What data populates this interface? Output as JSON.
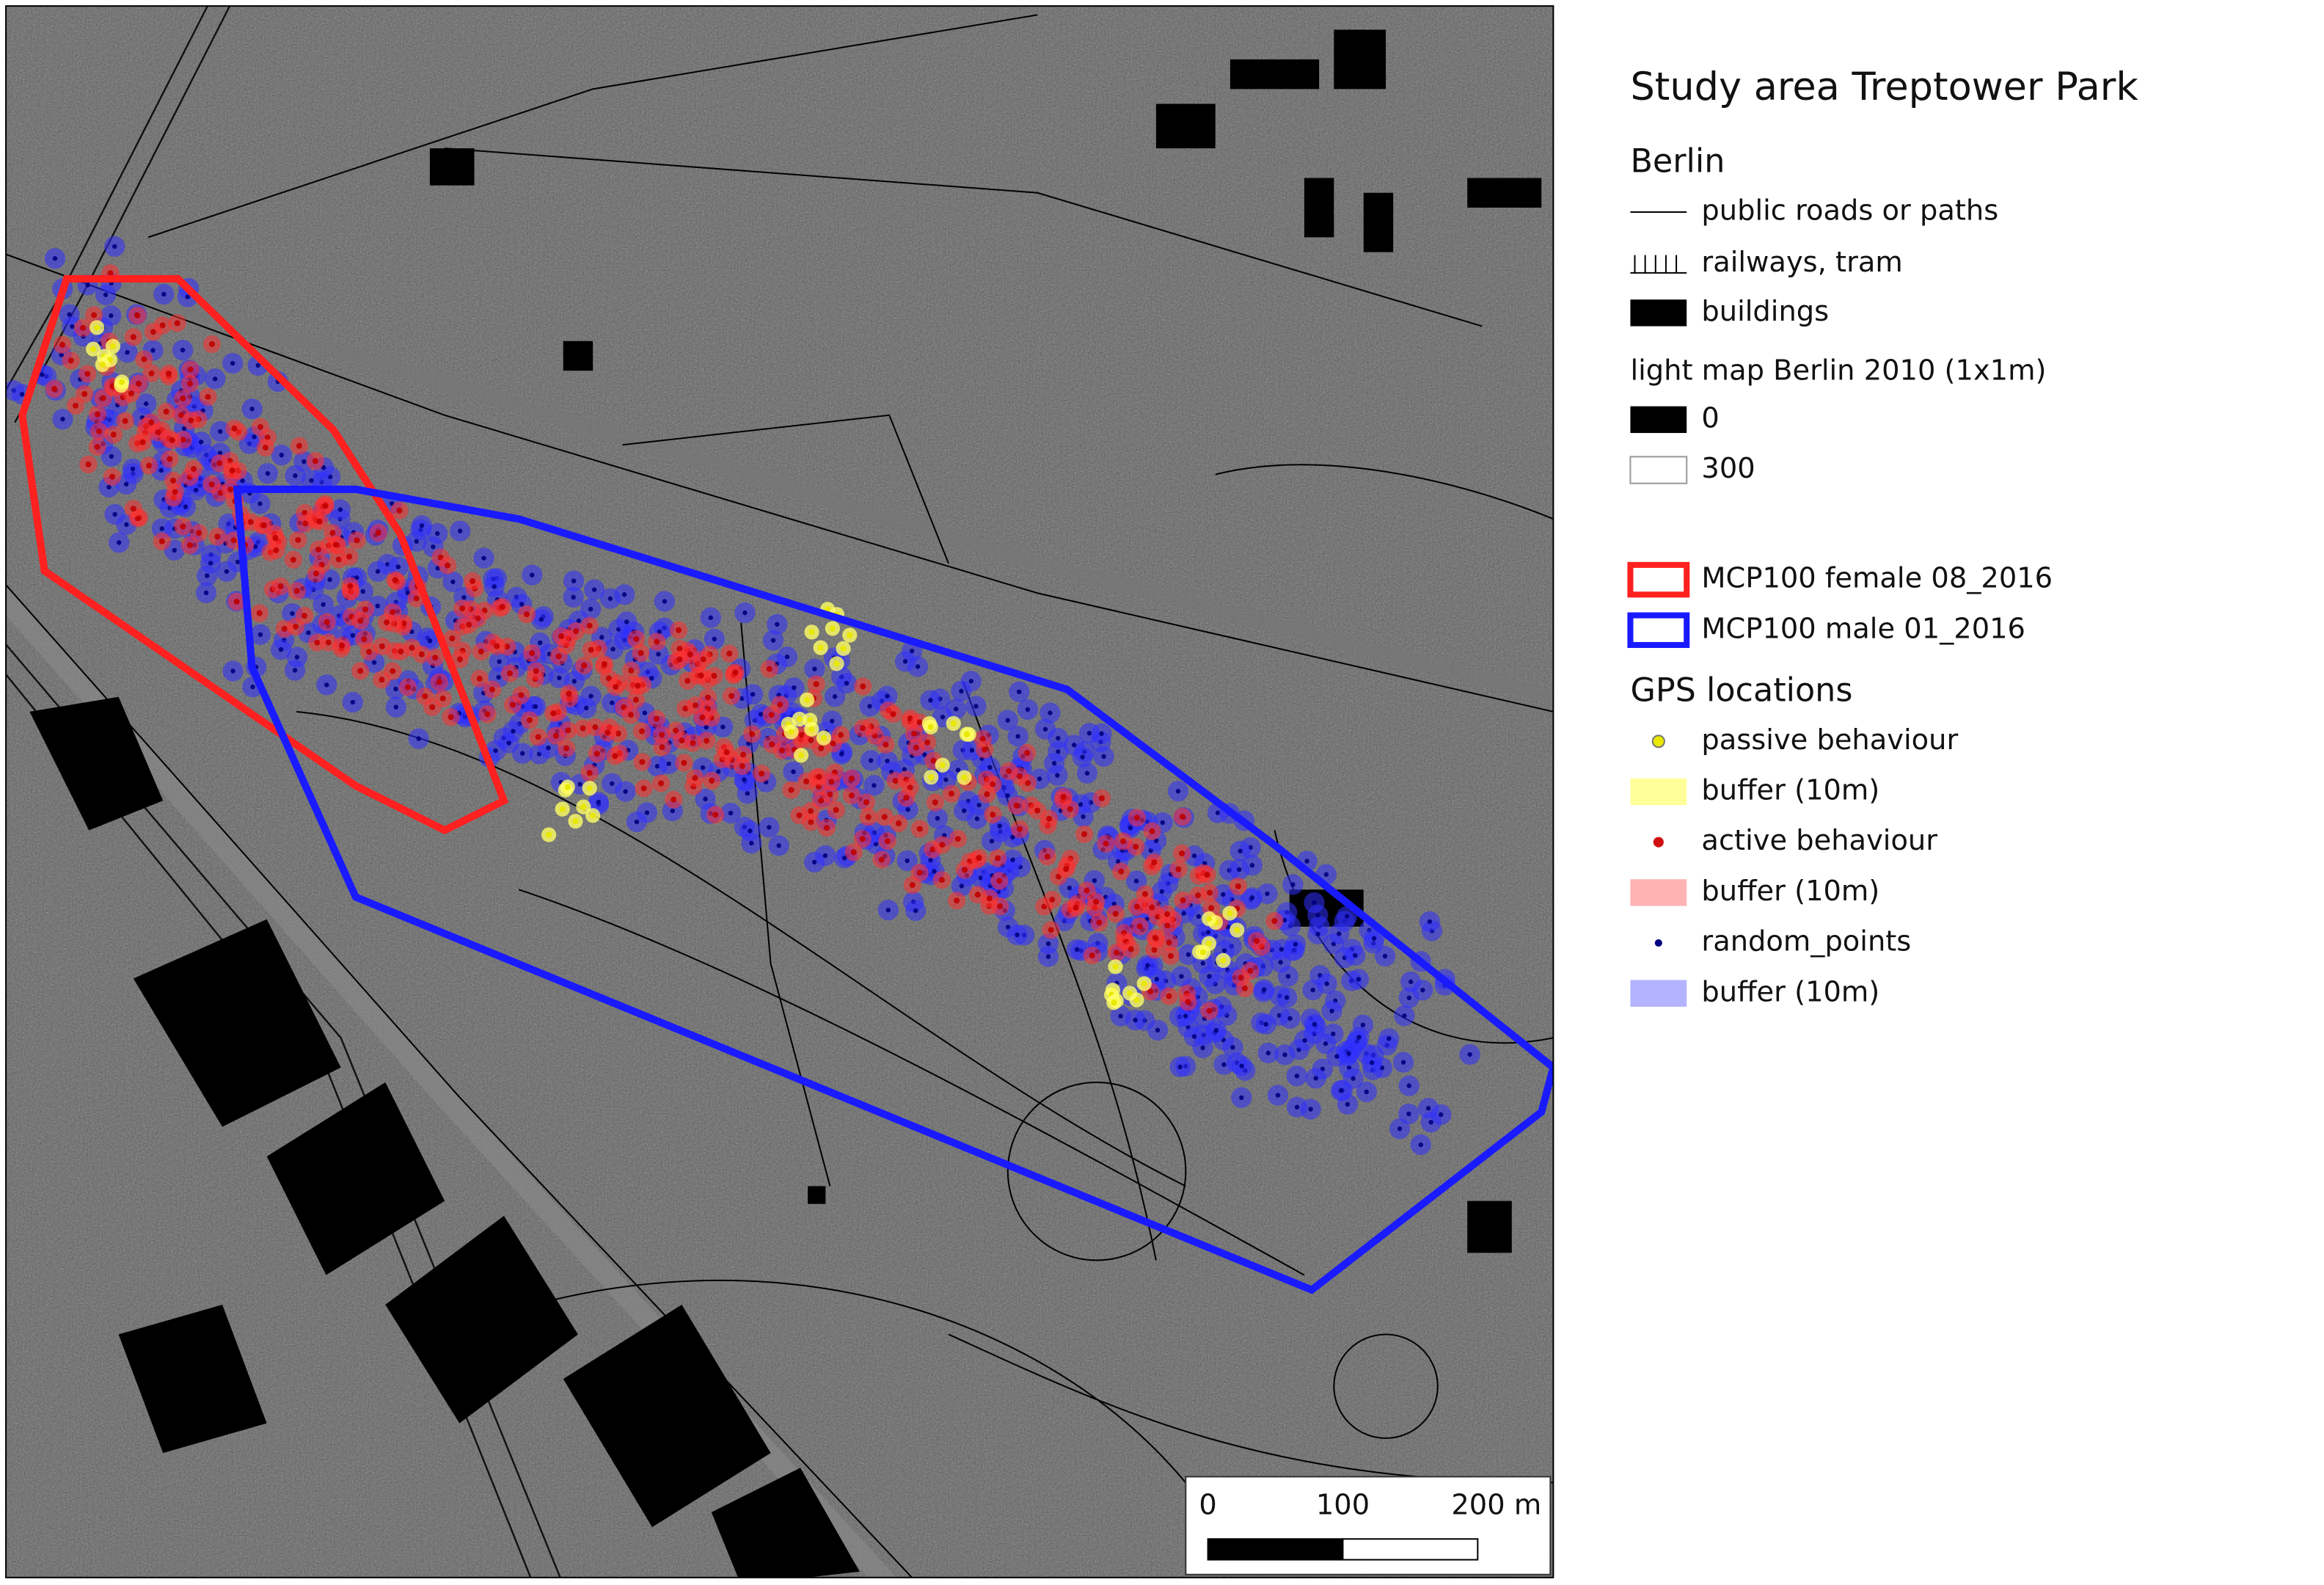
{
  "legend": {
    "title": "Study area Treptower Park",
    "berlin": {
      "heading": "Berlin",
      "items": [
        "public roads or paths",
        "railways, tram",
        "buildings"
      ]
    },
    "light_map": {
      "heading": "light map Berlin 2010 (1x1m)",
      "items": [
        "0",
        "300"
      ]
    },
    "home_ranges": {
      "items": [
        "MCP100 female 08_2016",
        "MCP100 male 01_2016"
      ]
    },
    "gps_locations": {
      "heading": "GPS locations",
      "items": [
        "passive behaviour",
        "buffer (10m)",
        "active behaviour",
        "buffer (10m)",
        "random_points",
        "buffer (10m)"
      ]
    }
  },
  "scale_bar": {
    "labels": [
      "0",
      "100",
      "200 m"
    ]
  }
}
